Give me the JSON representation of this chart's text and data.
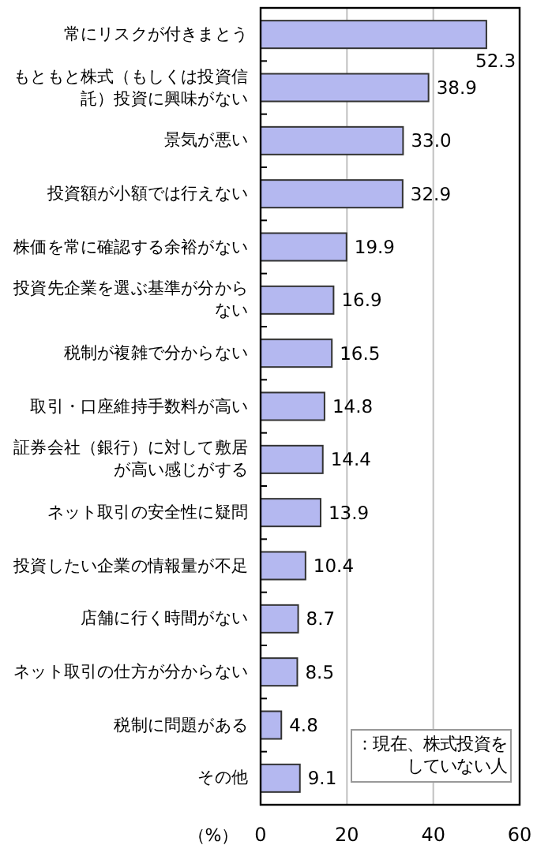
{
  "chart_data": {
    "type": "bar",
    "orientation": "horizontal",
    "categories": [
      "常にリスクが付きまとう",
      "もともと株式（もしくは投資信託）投資に興味がない",
      "景気が悪い",
      "投資額が小額では行えない",
      "株価を常に確認する余裕がない",
      "投資先企業を選ぶ基準が分からない",
      "税制が複雑で分からない",
      "取引・口座維持手数料が高い",
      "証券会社（銀行）に対して敷居が高い感じがする",
      "ネット取引の安全性に疑問",
      "投資したい企業の情報量が不足",
      "店舗に行く時間がない",
      "ネット取引の仕方が分からない",
      "税制に問題がある",
      "その他"
    ],
    "values": [
      52.3,
      38.9,
      33.0,
      32.9,
      19.9,
      16.9,
      16.5,
      14.8,
      14.4,
      13.9,
      10.4,
      8.7,
      8.5,
      4.8,
      9.1
    ],
    "color": "#b4b8f0",
    "value_labels": [
      "52.3",
      "38.9",
      "33.0",
      "32.9",
      "19.9",
      "16.9",
      "16.5",
      "14.8",
      "14.4",
      "13.9",
      "10.4",
      "8.7",
      "8.5",
      "4.8",
      "9.1"
    ],
    "xlim": [
      0,
      60
    ],
    "xticks": [
      0,
      20,
      40,
      60
    ],
    "grid": "x",
    "xlabel": "（%）",
    "annotations": [
      "：現在、株式投資をしていない人"
    ]
  }
}
